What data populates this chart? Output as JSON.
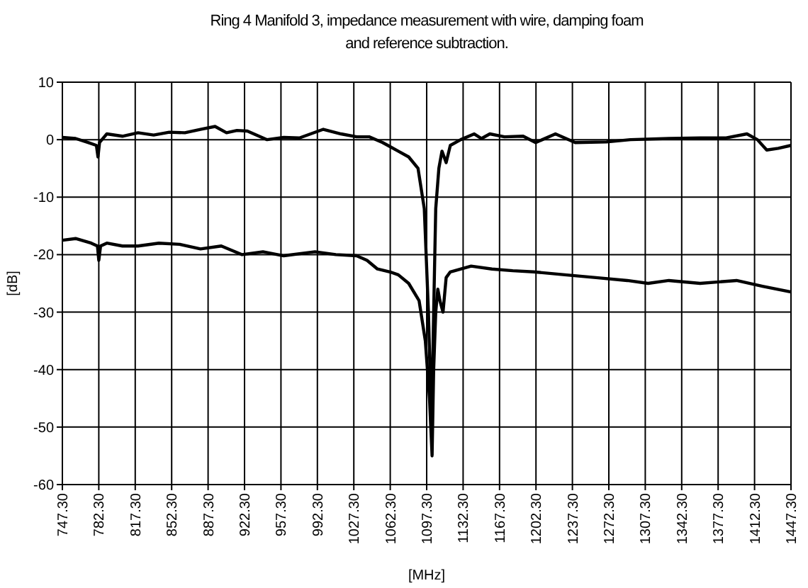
{
  "chart_data": {
    "type": "line",
    "title": "Ring 4 Manifold 3, impedance measurement with wire, damping foam and reference subtraction.",
    "xlabel": "[MHz]",
    "ylabel": "[dB]",
    "xlim": [
      747.3,
      1447.3
    ],
    "xticks": [
      {
        "value": 747.3,
        "label": "747.30"
      },
      {
        "value": 782.3,
        "label": "782.30"
      },
      {
        "value": 817.3,
        "label": "817.30"
      },
      {
        "value": 852.3,
        "label": "852.30"
      },
      {
        "value": 887.3,
        "label": "887.30"
      },
      {
        "value": 922.3,
        "label": "922.30"
      },
      {
        "value": 957.3,
        "label": "957.30"
      },
      {
        "value": 992.3,
        "label": "992.30"
      },
      {
        "value": 1027.3,
        "label": "1027.30"
      },
      {
        "value": 1062.3,
        "label": "1062.30"
      },
      {
        "value": 1097.3,
        "label": "1097.30"
      },
      {
        "value": 1132.3,
        "label": "1132.30"
      },
      {
        "value": 1167.3,
        "label": "1167.30"
      },
      {
        "value": 1202.3,
        "label": "1202.30"
      },
      {
        "value": 1237.3,
        "label": "1237.30"
      },
      {
        "value": 1272.3,
        "label": "1272.30"
      },
      {
        "value": 1307.3,
        "label": "1307.30"
      },
      {
        "value": 1342.3,
        "label": "1342.30"
      },
      {
        "value": 1377.3,
        "label": "1377.30"
      },
      {
        "value": 1412.3,
        "label": "1412.30"
      },
      {
        "value": 1447.3,
        "label": "1447.30"
      }
    ],
    "ylim": [
      -60,
      10
    ],
    "yticks": [
      -60,
      -50,
      -40,
      -30,
      -20,
      -10,
      0,
      10
    ],
    "grid": true,
    "line_style": "solid",
    "marker": "none",
    "series": [
      {
        "color": "#000000",
        "x": [
          747.3,
          760,
          772,
          780,
          781.5,
          783,
          790,
          805,
          820,
          835,
          850,
          865,
          880,
          894,
          905,
          915,
          925,
          944,
          960,
          975,
          998,
          1015,
          1030,
          1042,
          1055,
          1060,
          1070,
          1080,
          1089,
          1095,
          1099,
          1102,
          1104,
          1106,
          1109,
          1112,
          1116,
          1120,
          1130,
          1143,
          1150,
          1158,
          1172,
          1190,
          1202,
          1221,
          1240,
          1270,
          1293,
          1330,
          1360,
          1385,
          1405,
          1415,
          1424,
          1435,
          1447.3
        ],
        "values": [
          0.4,
          0.2,
          -0.5,
          -1,
          -3,
          -0.5,
          1,
          0.6,
          1.2,
          0.8,
          1.3,
          1.2,
          1.8,
          2.3,
          1.2,
          1.6,
          1.5,
          0,
          0.4,
          0.3,
          1.8,
          1,
          0.5,
          0.5,
          -0.5,
          -1,
          -2,
          -3,
          -5,
          -12,
          -30,
          -50,
          -30,
          -12,
          -5,
          -2,
          -4,
          -1,
          0,
          1,
          0.2,
          1,
          0.5,
          0.6,
          -0.5,
          1,
          -0.5,
          -0.4,
          0,
          0.2,
          0.3,
          0.3,
          1,
          0,
          -1.8,
          -1.5,
          -1
        ]
      },
      {
        "color": "#000000",
        "x": [
          747.3,
          760,
          775,
          781,
          782.3,
          784,
          790,
          805,
          820,
          840,
          860,
          880,
          900,
          920,
          940,
          960,
          990,
          1010,
          1030,
          1040,
          1050,
          1062,
          1070,
          1080,
          1090,
          1096,
          1100,
          1102.5,
          1104,
          1106,
          1108,
          1110,
          1113,
          1116,
          1120,
          1140,
          1160,
          1180,
          1200,
          1230,
          1260,
          1290,
          1310,
          1330,
          1360,
          1395,
          1420,
          1447.3
        ],
        "values": [
          -17.5,
          -17.2,
          -18,
          -18.5,
          -21,
          -18.5,
          -18,
          -18.5,
          -18.5,
          -18,
          -18.2,
          -19,
          -18.5,
          -20,
          -19.5,
          -20.2,
          -19.5,
          -20,
          -20.2,
          -21,
          -22.5,
          -23,
          -23.5,
          -25,
          -28,
          -35,
          -45,
          -55,
          -40,
          -30,
          -26,
          -28,
          -30,
          -24,
          -23,
          -22,
          -22.5,
          -22.8,
          -23,
          -23.5,
          -24,
          -24.5,
          -25,
          -24.5,
          -25,
          -24.5,
          -25.5,
          -26.5
        ]
      }
    ]
  }
}
